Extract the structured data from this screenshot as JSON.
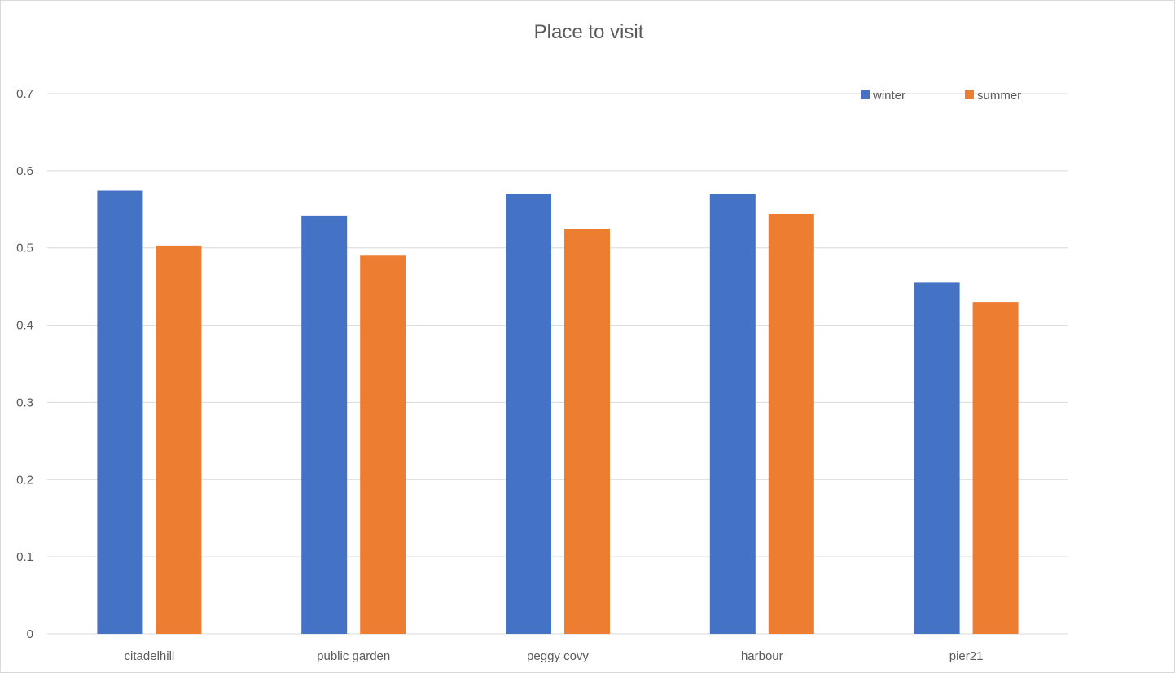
{
  "chart_data": {
    "type": "bar",
    "title": "Place to visit",
    "xlabel": "",
    "ylabel": "",
    "categories": [
      "citadelhill",
      "public garden",
      "peggy covy",
      "harbour",
      "pier21"
    ],
    "series": [
      {
        "name": "winter",
        "color": "#4472C4",
        "values": [
          0.574,
          0.542,
          0.57,
          0.57,
          0.455
        ]
      },
      {
        "name": "summer",
        "color": "#ED7D31",
        "values": [
          0.503,
          0.491,
          0.525,
          0.544,
          0.43
        ]
      }
    ],
    "ylim": [
      0,
      0.7
    ],
    "yticks": [
      "0",
      "0.1",
      "0.2",
      "0.3",
      "0.4",
      "0.5",
      "0.6",
      "0.7"
    ],
    "grid": true,
    "legend_position": "top-right"
  }
}
